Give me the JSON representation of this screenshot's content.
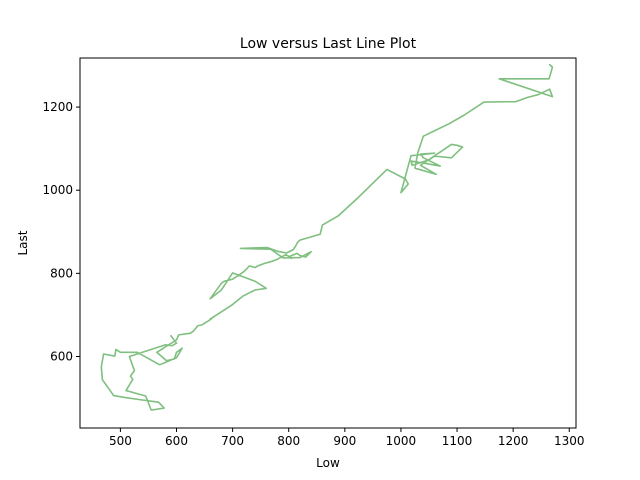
{
  "chart_data": {
    "type": "line",
    "title": "Low versus Last Line Plot",
    "xlabel": "Low",
    "ylabel": "Last",
    "xlim": [
      428,
      1312
    ],
    "ylim": [
      428,
      1318
    ],
    "xticks": [
      500,
      600,
      700,
      800,
      900,
      1000,
      1100,
      1200,
      1300
    ],
    "yticks": [
      600,
      800,
      1000,
      1200
    ],
    "grid": false,
    "line_color": "#7fbf7f",
    "series": [
      {
        "x": [
          1265,
          1270,
          1264,
          1175,
          1270,
          1265,
          1245,
          1225,
          1205,
          1148,
          1148,
          1112,
          1086,
          1040,
          1030,
          1025,
          1063,
          1035,
          1090,
          1100,
          1110,
          1090,
          1060,
          1050,
          1020,
          1018,
          1045,
          1070,
          1040,
          1035,
          1060,
          1018,
          1000,
          1013,
          1008,
          975,
          922,
          888,
          860,
          856,
          820,
          816,
          812,
          808,
          796,
          780,
          762,
          714,
          768,
          790,
          820,
          840,
          830,
          820,
          815,
          800,
          805,
          795,
          780,
          768,
          757,
          745,
          740,
          730,
          720,
          708,
          700,
          685,
          680,
          660,
          662,
          680,
          700,
          740,
          760,
          740,
          718,
          700,
          660,
          662,
          645,
          638,
          632,
          630,
          625,
          604,
          600,
          565,
          582,
          596,
          600,
          610,
          600,
          570,
          530,
          500,
          492,
          490,
          470,
          466,
          468,
          488,
          510,
          536,
          568,
          578,
          555,
          545,
          510,
          522,
          518,
          525,
          516,
          580,
          592,
          600,
          590,
          590
        ],
        "y": [
          1302,
          1296,
          1268,
          1268,
          1225,
          1243,
          1230,
          1223,
          1213,
          1212,
          1212,
          1180,
          1160,
          1130,
          1090,
          1053,
          1038,
          1060,
          1110,
          1108,
          1104,
          1078,
          1082,
          1073,
          1060,
          1070,
          1064,
          1058,
          1078,
          1087,
          1089,
          1083,
          994,
          1015,
          1027,
          1050,
          980,
          938,
          916,
          894,
          880,
          875,
          865,
          857,
          849,
          853,
          862,
          860,
          858,
          837,
          838,
          852,
          839,
          843,
          848,
          840,
          836,
          845,
          834,
          828,
          824,
          818,
          814,
          818,
          804,
          793,
          786,
          781,
          776,
          739,
          741,
          760,
          801,
          781,
          764,
          760,
          745,
          725,
          690,
          690,
          676,
          674,
          664,
          661,
          656,
          652,
          640,
          610,
          590,
          594,
          610,
          620,
          597,
          580,
          610,
          610,
          617,
          601,
          606,
          575,
          544,
          506,
          501,
          496,
          490,
          476,
          471,
          505,
          518,
          545,
          553,
          566,
          600,
          628,
          626,
          632,
          650,
          650
        ]
      }
    ]
  }
}
